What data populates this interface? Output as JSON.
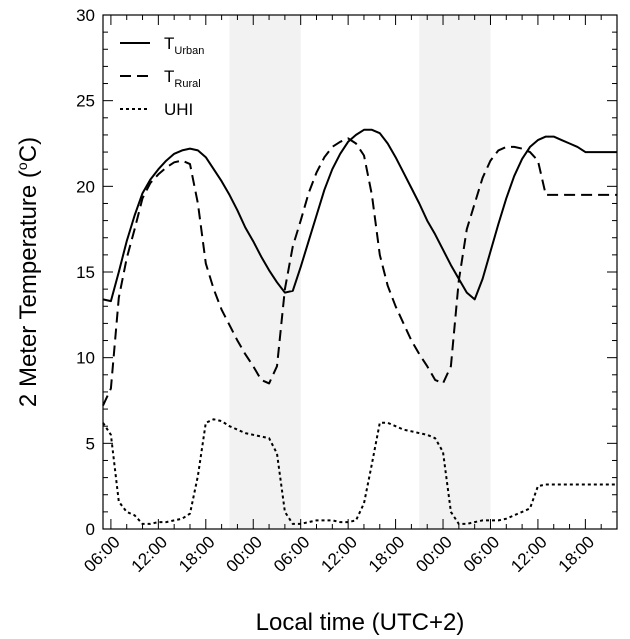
{
  "chart_data": {
    "type": "line",
    "xlabel": "Local time (UTC+2)",
    "ylabel_main": "2 Meter Temperature (",
    "ylabel_unit_sup": "o",
    "ylabel_unit_end": "C)",
    "ylim": [
      0,
      30
    ],
    "yticks": [
      0,
      5,
      10,
      15,
      20,
      25,
      30
    ],
    "x_range_hours": [
      5,
      70
    ],
    "xticks": [
      {
        "hour": 6,
        "label": "06:00"
      },
      {
        "hour": 12,
        "label": "12:00"
      },
      {
        "hour": 18,
        "label": "18:00"
      },
      {
        "hour": 24,
        "label": "00:00"
      },
      {
        "hour": 30,
        "label": "06:00"
      },
      {
        "hour": 36,
        "label": "12:00"
      },
      {
        "hour": 42,
        "label": "18:00"
      },
      {
        "hour": 48,
        "label": "00:00"
      },
      {
        "hour": 54,
        "label": "06:00"
      },
      {
        "hour": 60,
        "label": "12:00"
      },
      {
        "hour": 66,
        "label": "18:00"
      }
    ],
    "night_shading": [
      [
        21,
        30
      ],
      [
        45,
        54
      ]
    ],
    "legend": {
      "placement": "top-left",
      "entries": [
        {
          "main": "T",
          "sub": "Urban",
          "style": "solid"
        },
        {
          "main": "T",
          "sub": "Rural",
          "style": "dashed"
        },
        {
          "main": "UHI",
          "sub": "",
          "style": "dotted"
        }
      ]
    },
    "series": [
      {
        "style": "solid",
        "x": [
          5,
          6,
          7,
          8,
          9,
          10,
          11,
          12,
          13,
          14,
          15,
          16,
          17,
          18,
          19,
          20,
          21,
          22,
          23,
          24,
          25,
          26,
          27,
          28,
          29,
          30,
          31,
          32,
          33,
          34,
          35,
          36,
          37,
          38,
          39,
          40,
          41,
          42,
          43,
          44,
          45,
          46,
          47,
          48,
          49,
          50,
          51,
          52,
          53,
          54,
          55,
          56,
          57,
          58,
          59,
          60,
          61,
          62,
          63,
          64,
          65,
          66,
          67,
          68,
          69,
          70
        ],
        "y": [
          13.4,
          13.3,
          15.0,
          16.8,
          18.3,
          19.6,
          20.4,
          21.0,
          21.5,
          21.9,
          22.1,
          22.2,
          22.1,
          21.7,
          21.0,
          20.3,
          19.5,
          18.6,
          17.6,
          16.8,
          15.9,
          15.1,
          14.4,
          13.8,
          13.9,
          15.3,
          16.8,
          18.3,
          19.8,
          21.0,
          21.9,
          22.6,
          23.0,
          23.3,
          23.3,
          23.1,
          22.5,
          21.7,
          20.8,
          19.9,
          19.0,
          18.0,
          17.2,
          16.3,
          15.4,
          14.6,
          13.8,
          13.4,
          14.6,
          16.2,
          17.8,
          19.3,
          20.6,
          21.6,
          22.3,
          22.7,
          22.9,
          22.9,
          22.7,
          22.5,
          22.3,
          22.0,
          22.0,
          22.0,
          22.0,
          22.0
        ]
      },
      {
        "style": "dashed",
        "x": [
          5,
          6,
          7,
          8,
          9,
          10,
          11,
          12,
          13,
          14,
          15,
          16,
          17,
          18,
          19,
          20,
          21,
          22,
          23,
          24,
          25,
          26,
          27,
          28,
          29,
          30,
          31,
          32,
          33,
          34,
          35,
          36,
          37,
          38,
          39,
          40,
          41,
          42,
          43,
          44,
          45,
          46,
          47,
          48,
          49,
          50,
          51,
          52,
          53,
          54,
          55,
          56,
          57,
          58,
          59,
          60,
          61,
          62,
          63,
          64,
          65,
          66,
          67,
          68,
          69,
          70
        ],
        "y": [
          7.2,
          8.2,
          13.5,
          15.8,
          17.5,
          19.3,
          20.2,
          20.7,
          21.1,
          21.4,
          21.5,
          21.3,
          19.0,
          15.5,
          14.0,
          12.8,
          11.9,
          11.0,
          10.2,
          9.5,
          8.7,
          8.5,
          9.5,
          14.0,
          16.5,
          18.0,
          19.6,
          20.8,
          21.7,
          22.3,
          22.6,
          22.8,
          22.5,
          21.8,
          19.5,
          16.0,
          14.2,
          13.0,
          12.0,
          11.0,
          10.2,
          9.5,
          8.7,
          8.5,
          9.5,
          14.5,
          17.5,
          19.0,
          20.5,
          21.5,
          22.1,
          22.3,
          22.3,
          22.2,
          22.0,
          21.5,
          19.5,
          19.5,
          19.5,
          19.5,
          19.5,
          19.5,
          19.5,
          19.5,
          19.5,
          19.5
        ]
      },
      {
        "style": "dotted",
        "x": [
          5,
          6,
          7,
          8,
          9,
          10,
          11,
          12,
          13,
          14,
          15,
          16,
          17,
          18,
          19,
          20,
          21,
          22,
          23,
          24,
          25,
          26,
          27,
          28,
          29,
          30,
          31,
          32,
          33,
          34,
          35,
          36,
          37,
          38,
          39,
          40,
          41,
          42,
          43,
          44,
          45,
          46,
          47,
          48,
          49,
          50,
          51,
          52,
          53,
          54,
          55,
          56,
          57,
          58,
          59,
          60,
          61,
          62,
          63,
          64,
          65,
          66,
          67,
          68,
          69,
          70
        ],
        "y": [
          6.2,
          5.5,
          1.6,
          1.0,
          0.8,
          0.3,
          0.3,
          0.4,
          0.4,
          0.5,
          0.6,
          0.9,
          3.1,
          6.2,
          6.4,
          6.3,
          6.0,
          5.8,
          5.6,
          5.5,
          5.4,
          5.3,
          4.4,
          1.0,
          0.3,
          0.3,
          0.4,
          0.5,
          0.5,
          0.5,
          0.4,
          0.4,
          0.5,
          1.5,
          3.8,
          6.2,
          6.2,
          6.0,
          5.8,
          5.7,
          5.6,
          5.5,
          5.3,
          4.5,
          1.0,
          0.3,
          0.3,
          0.4,
          0.5,
          0.5,
          0.5,
          0.6,
          0.8,
          1.0,
          1.2,
          2.5,
          2.6,
          2.6,
          2.6,
          2.6,
          2.6,
          2.6,
          2.6,
          2.6,
          2.6,
          2.6
        ]
      }
    ]
  }
}
